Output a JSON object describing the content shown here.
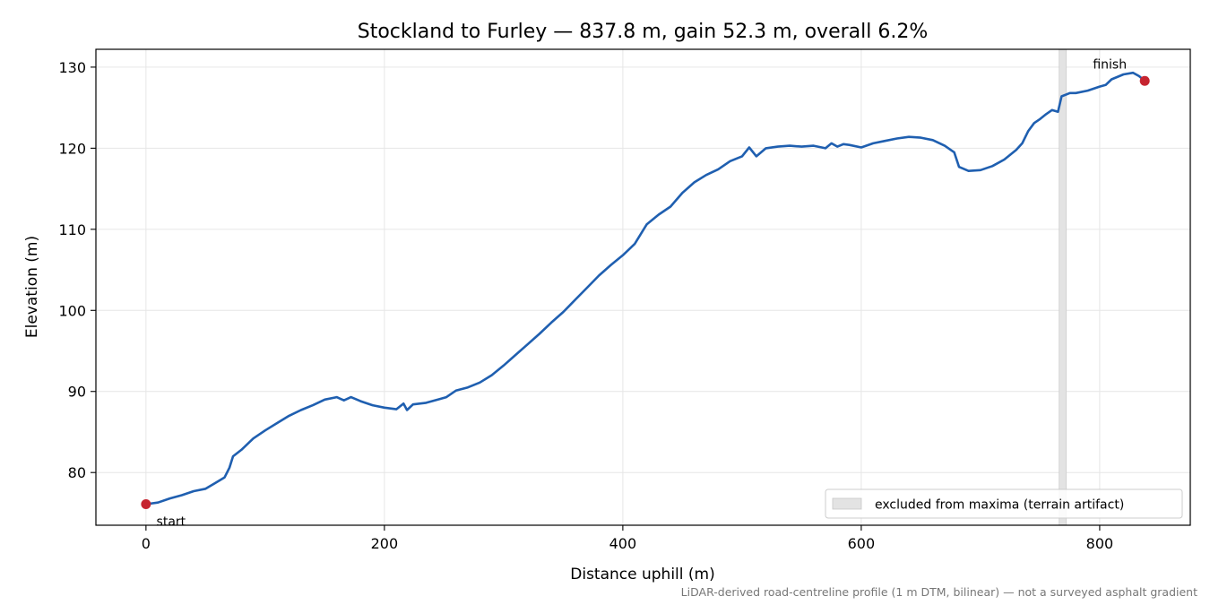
{
  "chart_data": {
    "type": "line",
    "title": "Stockland to Furley — 837.8 m, gain 52.3 m, overall 6.2%",
    "xlabel": "Distance uphill (m)",
    "ylabel": "Elevation (m)",
    "xlim": [
      -42,
      876
    ],
    "ylim": [
      73.5,
      132.2
    ],
    "xticks": [
      0,
      200,
      400,
      600,
      800
    ],
    "yticks": [
      80,
      90,
      100,
      110,
      120,
      130
    ],
    "grid": true,
    "legend_position": "lower-right",
    "series": [
      {
        "color": "#1f5fb0",
        "points": [
          [
            0,
            76.1
          ],
          [
            10,
            76.3
          ],
          [
            20,
            76.8
          ],
          [
            30,
            77.2
          ],
          [
            40,
            77.7
          ],
          [
            50,
            78.0
          ],
          [
            58,
            78.7
          ],
          [
            66,
            79.4
          ],
          [
            70,
            80.6
          ],
          [
            73,
            82.0
          ],
          [
            80,
            82.8
          ],
          [
            90,
            84.2
          ],
          [
            100,
            85.2
          ],
          [
            110,
            86.1
          ],
          [
            120,
            87.0
          ],
          [
            130,
            87.7
          ],
          [
            140,
            88.3
          ],
          [
            150,
            89.0
          ],
          [
            160,
            89.3
          ],
          [
            166,
            88.9
          ],
          [
            172,
            89.3
          ],
          [
            180,
            88.8
          ],
          [
            190,
            88.3
          ],
          [
            200,
            88.0
          ],
          [
            210,
            87.8
          ],
          [
            216,
            88.5
          ],
          [
            219,
            87.7
          ],
          [
            224,
            88.4
          ],
          [
            235,
            88.6
          ],
          [
            245,
            89.0
          ],
          [
            252,
            89.3
          ],
          [
            260,
            90.1
          ],
          [
            270,
            90.5
          ],
          [
            280,
            91.1
          ],
          [
            290,
            92.0
          ],
          [
            300,
            93.2
          ],
          [
            310,
            94.5
          ],
          [
            320,
            95.8
          ],
          [
            330,
            97.1
          ],
          [
            340,
            98.5
          ],
          [
            350,
            99.8
          ],
          [
            360,
            101.3
          ],
          [
            370,
            102.8
          ],
          [
            380,
            104.3
          ],
          [
            390,
            105.6
          ],
          [
            400,
            106.8
          ],
          [
            410,
            108.2
          ],
          [
            420,
            110.6
          ],
          [
            430,
            111.8
          ],
          [
            440,
            112.8
          ],
          [
            450,
            114.5
          ],
          [
            460,
            115.8
          ],
          [
            470,
            116.7
          ],
          [
            480,
            117.4
          ],
          [
            490,
            118.4
          ],
          [
            500,
            119.0
          ],
          [
            506,
            120.1
          ],
          [
            512,
            119.0
          ],
          [
            520,
            120.0
          ],
          [
            530,
            120.2
          ],
          [
            540,
            120.3
          ],
          [
            550,
            120.2
          ],
          [
            560,
            120.3
          ],
          [
            570,
            120.0
          ],
          [
            575,
            120.6
          ],
          [
            580,
            120.2
          ],
          [
            585,
            120.5
          ],
          [
            590,
            120.4
          ],
          [
            600,
            120.1
          ],
          [
            610,
            120.6
          ],
          [
            620,
            120.9
          ],
          [
            630,
            121.2
          ],
          [
            640,
            121.4
          ],
          [
            650,
            121.3
          ],
          [
            660,
            121.0
          ],
          [
            670,
            120.3
          ],
          [
            678,
            119.5
          ],
          [
            682,
            117.7
          ],
          [
            690,
            117.2
          ],
          [
            700,
            117.3
          ],
          [
            710,
            117.8
          ],
          [
            720,
            118.6
          ],
          [
            730,
            119.8
          ],
          [
            735,
            120.6
          ],
          [
            740,
            122.1
          ],
          [
            745,
            123.1
          ],
          [
            750,
            123.6
          ],
          [
            755,
            124.2
          ],
          [
            760,
            124.7
          ],
          [
            765,
            124.5
          ],
          [
            768,
            126.4
          ],
          [
            775,
            126.8
          ],
          [
            780,
            126.8
          ],
          [
            790,
            127.1
          ],
          [
            800,
            127.6
          ],
          [
            805,
            127.8
          ],
          [
            810,
            128.5
          ],
          [
            820,
            129.1
          ],
          [
            828,
            129.3
          ],
          [
            833,
            128.9
          ],
          [
            837.8,
            128.3
          ]
        ]
      }
    ],
    "markers": [
      {
        "x": 0,
        "y": 76.1,
        "label": "start",
        "color": "#c62430"
      },
      {
        "x": 837.8,
        "y": 128.3,
        "label": "finish",
        "color": "#c62430"
      }
    ],
    "excluded_span": {
      "x_start": 766,
      "x_end": 772,
      "label": "excluded from maxima (terrain artifact)",
      "color": "#e3e3e3"
    },
    "footnote": "LiDAR-derived road-centreline profile (1 m DTM, bilinear) — not a surveyed asphalt gradient"
  }
}
